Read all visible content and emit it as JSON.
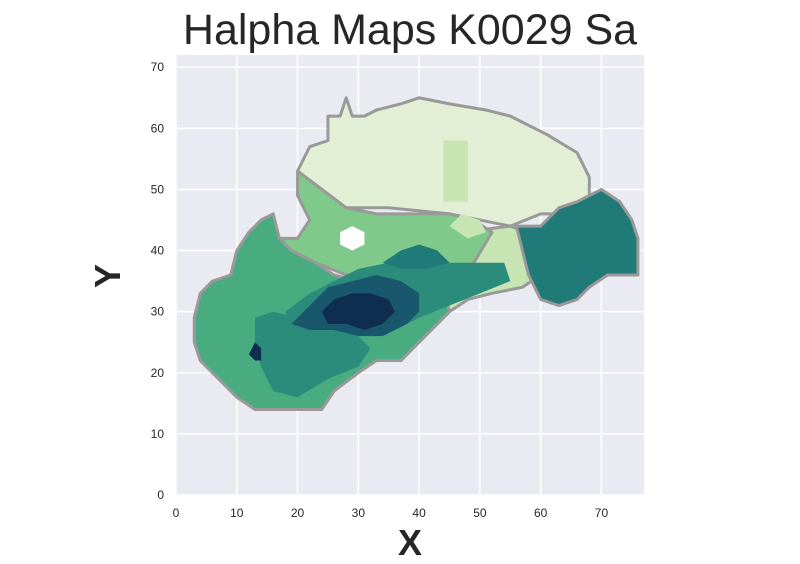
{
  "chart_data": {
    "type": "heatmap",
    "title": "Halpha Maps K0029 Sa",
    "xlabel": "X",
    "ylabel": "Y",
    "xlim": [
      0,
      77
    ],
    "ylim": [
      0,
      72
    ],
    "xticks": [
      0,
      10,
      20,
      30,
      40,
      50,
      60,
      70
    ],
    "yticks": [
      0,
      10,
      20,
      30,
      40,
      50,
      60,
      70
    ],
    "grid": true,
    "colormap": "YlGnBu-green (light green to dark navy)",
    "colors": {
      "background": "#EAEAF2",
      "grid": "#FFFFFF",
      "outline": "#999999",
      "level_0": "#FFFFFF",
      "level_1": "#E3EFD4",
      "level_2": "#C6E5B3",
      "level_3": "#A9DB9E",
      "level_4": "#7FCA8B",
      "level_5": "#48AC80",
      "level_6": "#2B8C7C",
      "level_7": "#1F7A78",
      "level_8": "#19586C",
      "level_9": "#0F2E4F"
    },
    "regions": [
      {
        "name": "upper-light-lobe",
        "level": 1,
        "points": [
          [
            20,
            53
          ],
          [
            21,
            55
          ],
          [
            22,
            57
          ],
          [
            25,
            58
          ],
          [
            25,
            62
          ],
          [
            27,
            62
          ],
          [
            28,
            65
          ],
          [
            29,
            62
          ],
          [
            31,
            62
          ],
          [
            33,
            63
          ],
          [
            37,
            64
          ],
          [
            40,
            65
          ],
          [
            45,
            64
          ],
          [
            51,
            63
          ],
          [
            55,
            62
          ],
          [
            61,
            59
          ],
          [
            66,
            56
          ],
          [
            68,
            52
          ],
          [
            68,
            48
          ],
          [
            66,
            46
          ],
          [
            60,
            46
          ],
          [
            55,
            44
          ],
          [
            45,
            46
          ],
          [
            35,
            47
          ],
          [
            28,
            47
          ],
          [
            24,
            50
          ]
        ]
      },
      {
        "name": "right-lower-lobe",
        "level": 2,
        "points": [
          [
            37,
            22
          ],
          [
            41,
            26
          ],
          [
            45,
            30
          ],
          [
            48,
            32
          ],
          [
            52,
            33
          ],
          [
            57,
            34
          ],
          [
            60,
            36
          ],
          [
            60,
            42
          ],
          [
            55,
            44
          ],
          [
            47,
            43
          ],
          [
            41,
            42
          ],
          [
            37,
            38
          ],
          [
            33,
            32
          ],
          [
            31,
            26
          ],
          [
            34,
            23
          ]
        ]
      },
      {
        "name": "left-mid-region",
        "level": 4,
        "points": [
          [
            17,
            42
          ],
          [
            20,
            42
          ],
          [
            22,
            45
          ],
          [
            20,
            49
          ],
          [
            20,
            53
          ],
          [
            24,
            50
          ],
          [
            28,
            47
          ],
          [
            33,
            46
          ],
          [
            40,
            46
          ],
          [
            45,
            46
          ],
          [
            49,
            45
          ],
          [
            52,
            43
          ],
          [
            49,
            38
          ],
          [
            45,
            36
          ],
          [
            40,
            35
          ],
          [
            34,
            35
          ],
          [
            28,
            36
          ],
          [
            23,
            38
          ],
          [
            19,
            40
          ]
        ]
      },
      {
        "name": "left-body",
        "level": 5,
        "points": [
          [
            10,
            40
          ],
          [
            12,
            43
          ],
          [
            14,
            45
          ],
          [
            16,
            46
          ],
          [
            17,
            42
          ],
          [
            19,
            40
          ],
          [
            23,
            38
          ],
          [
            26,
            36
          ],
          [
            30,
            35
          ],
          [
            35,
            35
          ],
          [
            40,
            35
          ],
          [
            44,
            34
          ],
          [
            45,
            30
          ],
          [
            41,
            26
          ],
          [
            37,
            22
          ],
          [
            33,
            22
          ],
          [
            30,
            20
          ],
          [
            26,
            17
          ],
          [
            24,
            14
          ],
          [
            20,
            14
          ],
          [
            16,
            14
          ],
          [
            13,
            14
          ],
          [
            10,
            16
          ],
          [
            8,
            18
          ],
          [
            6,
            20
          ],
          [
            4,
            22
          ],
          [
            3,
            25
          ],
          [
            3,
            29
          ],
          [
            4,
            33
          ],
          [
            6,
            35
          ],
          [
            9,
            36
          ]
        ]
      },
      {
        "name": "right-dark-arm",
        "level": 7,
        "points": [
          [
            56,
            44
          ],
          [
            60,
            44
          ],
          [
            63,
            47
          ],
          [
            66,
            48
          ],
          [
            70,
            50
          ],
          [
            73,
            48
          ],
          [
            75,
            45
          ],
          [
            76,
            42
          ],
          [
            76,
            36
          ],
          [
            71,
            36
          ],
          [
            68,
            34
          ],
          [
            66,
            32
          ],
          [
            63,
            31
          ],
          [
            60,
            32
          ],
          [
            58,
            36
          ],
          [
            57,
            40
          ]
        ]
      },
      {
        "name": "central-band",
        "level": 6,
        "points": [
          [
            18,
            30
          ],
          [
            22,
            33
          ],
          [
            26,
            35
          ],
          [
            30,
            37
          ],
          [
            35,
            38
          ],
          [
            40,
            38
          ],
          [
            45,
            38
          ],
          [
            50,
            38
          ],
          [
            54,
            38
          ],
          [
            55,
            35
          ],
          [
            50,
            33
          ],
          [
            45,
            31
          ],
          [
            40,
            29
          ],
          [
            36,
            27
          ],
          [
            30,
            26
          ],
          [
            24,
            26
          ],
          [
            19,
            27
          ]
        ]
      },
      {
        "name": "lower-left-band",
        "level": 6,
        "points": [
          [
            13,
            29
          ],
          [
            16,
            30
          ],
          [
            20,
            29
          ],
          [
            26,
            28
          ],
          [
            30,
            26
          ],
          [
            32,
            24
          ],
          [
            30,
            21
          ],
          [
            25,
            19
          ],
          [
            20,
            16
          ],
          [
            16,
            17
          ],
          [
            14,
            21
          ],
          [
            13,
            25
          ]
        ]
      },
      {
        "name": "core",
        "level": 8,
        "points": [
          [
            19,
            28
          ],
          [
            22,
            31
          ],
          [
            25,
            34
          ],
          [
            29,
            35
          ],
          [
            33,
            36
          ],
          [
            37,
            35
          ],
          [
            40,
            33
          ],
          [
            40,
            30
          ],
          [
            38,
            28
          ],
          [
            34,
            26
          ],
          [
            30,
            26
          ],
          [
            26,
            27
          ],
          [
            22,
            27
          ]
        ]
      },
      {
        "name": "core-inner",
        "level": 9,
        "points": [
          [
            24,
            30
          ],
          [
            26,
            32
          ],
          [
            29,
            33
          ],
          [
            32,
            33
          ],
          [
            35,
            32
          ],
          [
            36,
            30
          ],
          [
            34,
            28
          ],
          [
            31,
            27
          ],
          [
            28,
            28
          ],
          [
            25,
            28
          ]
        ]
      },
      {
        "name": "core-spot",
        "level": 9,
        "points": [
          [
            12,
            23
          ],
          [
            13,
            25
          ],
          [
            14,
            24
          ],
          [
            14,
            22
          ],
          [
            13,
            22
          ]
        ]
      },
      {
        "name": "mid-dark-streak",
        "level": 7,
        "points": [
          [
            34,
            38
          ],
          [
            37,
            40
          ],
          [
            40,
            41
          ],
          [
            43,
            40
          ],
          [
            45,
            38
          ],
          [
            41,
            37
          ],
          [
            37,
            37
          ]
        ]
      },
      {
        "name": "white-spot",
        "level": 0,
        "points": [
          [
            27,
            41
          ],
          [
            27,
            43
          ],
          [
            29,
            44
          ],
          [
            31,
            43
          ],
          [
            31,
            41
          ],
          [
            29,
            40
          ]
        ]
      },
      {
        "name": "pale-patch",
        "level": 2,
        "points": [
          [
            45,
            44
          ],
          [
            47,
            46
          ],
          [
            50,
            45
          ],
          [
            51,
            43
          ],
          [
            48,
            42
          ]
        ]
      },
      {
        "name": "pale-top-square",
        "level": 2,
        "points": [
          [
            44,
            48
          ],
          [
            44,
            58
          ],
          [
            48,
            58
          ],
          [
            48,
            48
          ]
        ]
      }
    ]
  }
}
